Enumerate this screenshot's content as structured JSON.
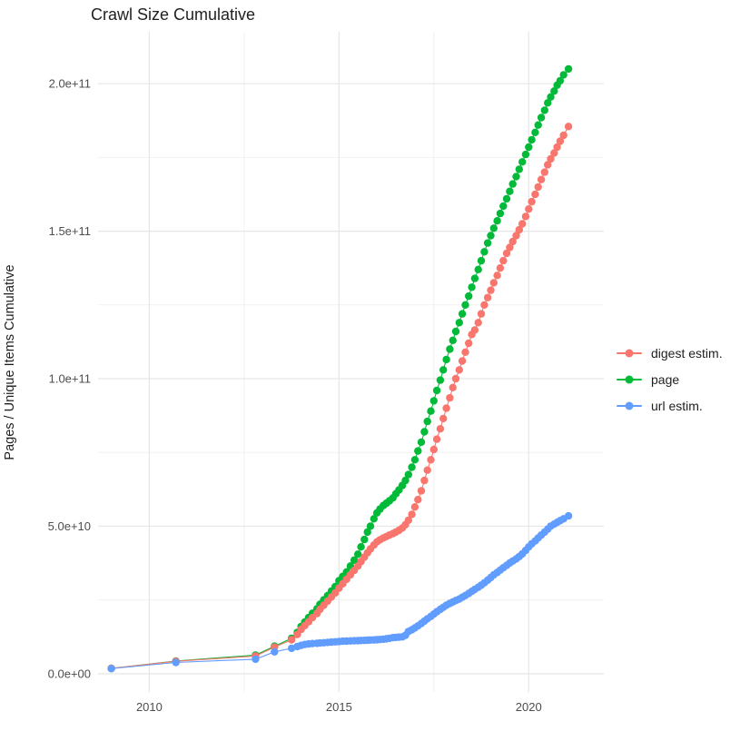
{
  "title": "Crawl Size Cumulative",
  "colors": {
    "digest": "#F8766D",
    "page": "#00BA38",
    "url": "#619CFF",
    "grid_major": "#E6E6E6",
    "grid_minor": "#F1F1F1",
    "tick_label": "#4D4D4D",
    "text": "#1F1F1F",
    "background": "#FFFFFF"
  },
  "legend": {
    "items": [
      {
        "label": "digest estim.",
        "color_key": "digest"
      },
      {
        "label": "page",
        "color_key": "page"
      },
      {
        "label": "url estim.",
        "color_key": "url"
      }
    ]
  },
  "chart_data": {
    "type": "line",
    "markers": true,
    "title": "Crawl Size Cumulative",
    "xlabel": "",
    "ylabel": "Pages / Unique Items Cumulative",
    "y_unit": 1000000000,
    "y_unit_note": "values below are in billions (1e9)",
    "xlim": [
      2008.65,
      2021.98
    ],
    "ylim": [
      -6.2,
      217.6
    ],
    "x_ticks": {
      "major": [
        2010,
        2015,
        2020
      ],
      "minor": [
        2012.5,
        2017.5
      ],
      "labels": [
        "2010",
        "2015",
        "2020"
      ]
    },
    "y_ticks": {
      "major": [
        0,
        50,
        100,
        150,
        200
      ],
      "minor": [
        25,
        75,
        125,
        175
      ],
      "labels": [
        "0.0e+00",
        "5.0e+10",
        "1.0e+11",
        "1.5e+11",
        "2.0e+11"
      ]
    },
    "grid": true,
    "legend_position": "right",
    "series": [
      {
        "name": "page",
        "color_key": "page",
        "points": [
          [
            2009.0,
            1.8
          ],
          [
            2010.7,
            4.3
          ],
          [
            2012.8,
            6.3
          ],
          [
            2013.3,
            9.3
          ],
          [
            2013.75,
            12
          ],
          [
            2013.9,
            14
          ],
          [
            2014.0,
            16
          ],
          [
            2014.1,
            17.5
          ],
          [
            2014.2,
            19
          ],
          [
            2014.3,
            20.5
          ],
          [
            2014.42,
            22
          ],
          [
            2014.5,
            23.5
          ],
          [
            2014.6,
            25
          ],
          [
            2014.7,
            26.5
          ],
          [
            2014.8,
            28
          ],
          [
            2014.9,
            29.5
          ],
          [
            2015.0,
            31.5
          ],
          [
            2015.1,
            33
          ],
          [
            2015.2,
            34.5
          ],
          [
            2015.3,
            36.5
          ],
          [
            2015.4,
            38.5
          ],
          [
            2015.5,
            40.5
          ],
          [
            2015.58,
            43
          ],
          [
            2015.67,
            45.5
          ],
          [
            2015.75,
            48
          ],
          [
            2015.83,
            50
          ],
          [
            2015.92,
            52.5
          ],
          [
            2016.0,
            54.5
          ],
          [
            2016.08,
            55.8
          ],
          [
            2016.17,
            57
          ],
          [
            2016.25,
            57.8
          ],
          [
            2016.33,
            58.6
          ],
          [
            2016.42,
            59.6
          ],
          [
            2016.5,
            61
          ],
          [
            2016.58,
            62.3
          ],
          [
            2016.67,
            63.8
          ],
          [
            2016.75,
            65.5
          ],
          [
            2016.83,
            67.5
          ],
          [
            2016.92,
            70
          ],
          [
            2017.0,
            72.5
          ],
          [
            2017.08,
            75.5
          ],
          [
            2017.17,
            78.5
          ],
          [
            2017.25,
            82
          ],
          [
            2017.33,
            85.5
          ],
          [
            2017.42,
            89
          ],
          [
            2017.5,
            92.5
          ],
          [
            2017.58,
            96
          ],
          [
            2017.67,
            99.5
          ],
          [
            2017.75,
            103
          ],
          [
            2017.83,
            106.5
          ],
          [
            2017.92,
            110
          ],
          [
            2018.0,
            113
          ],
          [
            2018.08,
            116
          ],
          [
            2018.17,
            119
          ],
          [
            2018.25,
            122
          ],
          [
            2018.33,
            125
          ],
          [
            2018.42,
            128
          ],
          [
            2018.5,
            131
          ],
          [
            2018.58,
            134
          ],
          [
            2018.67,
            137
          ],
          [
            2018.75,
            140
          ],
          [
            2018.83,
            143
          ],
          [
            2018.92,
            146
          ],
          [
            2019.0,
            148.5
          ],
          [
            2019.08,
            151
          ],
          [
            2019.17,
            153.5
          ],
          [
            2019.25,
            156
          ],
          [
            2019.33,
            158.5
          ],
          [
            2019.42,
            161
          ],
          [
            2019.5,
            163.5
          ],
          [
            2019.58,
            166
          ],
          [
            2019.67,
            168.5
          ],
          [
            2019.75,
            171
          ],
          [
            2019.83,
            173.5
          ],
          [
            2019.92,
            176
          ],
          [
            2020.0,
            178.5
          ],
          [
            2020.08,
            181
          ],
          [
            2020.17,
            183.5
          ],
          [
            2020.25,
            186
          ],
          [
            2020.33,
            188.5
          ],
          [
            2020.42,
            191
          ],
          [
            2020.5,
            193.5
          ],
          [
            2020.58,
            195.5
          ],
          [
            2020.67,
            197.5
          ],
          [
            2020.75,
            199.5
          ],
          [
            2020.83,
            201
          ],
          [
            2020.92,
            203
          ],
          [
            2021.05,
            205
          ]
        ]
      },
      {
        "name": "digest estim.",
        "color_key": "digest",
        "points": [
          [
            2009.0,
            1.8
          ],
          [
            2010.7,
            4.2
          ],
          [
            2012.8,
            6.0
          ],
          [
            2013.3,
            9.0
          ],
          [
            2013.75,
            11.5
          ],
          [
            2013.9,
            13.3
          ],
          [
            2014.0,
            15
          ],
          [
            2014.1,
            16.3
          ],
          [
            2014.2,
            17.6
          ],
          [
            2014.3,
            19
          ],
          [
            2014.42,
            20.4
          ],
          [
            2014.5,
            21.8
          ],
          [
            2014.6,
            23.2
          ],
          [
            2014.7,
            24.6
          ],
          [
            2014.8,
            26
          ],
          [
            2014.9,
            27.4
          ],
          [
            2015.0,
            29
          ],
          [
            2015.1,
            30.5
          ],
          [
            2015.2,
            32
          ],
          [
            2015.3,
            33.5
          ],
          [
            2015.4,
            35
          ],
          [
            2015.5,
            36.5
          ],
          [
            2015.58,
            38
          ],
          [
            2015.67,
            39.5
          ],
          [
            2015.75,
            41
          ],
          [
            2015.83,
            42.3
          ],
          [
            2015.92,
            43.6
          ],
          [
            2016.0,
            44.7
          ],
          [
            2016.08,
            45.4
          ],
          [
            2016.17,
            46
          ],
          [
            2016.25,
            46.5
          ],
          [
            2016.33,
            47
          ],
          [
            2016.42,
            47.5
          ],
          [
            2016.5,
            48
          ],
          [
            2016.58,
            48.6
          ],
          [
            2016.67,
            49.4
          ],
          [
            2016.75,
            50.5
          ],
          [
            2016.83,
            52
          ],
          [
            2016.92,
            54
          ],
          [
            2017.0,
            56.5
          ],
          [
            2017.08,
            59
          ],
          [
            2017.17,
            62
          ],
          [
            2017.25,
            65.5
          ],
          [
            2017.33,
            69
          ],
          [
            2017.42,
            72.5
          ],
          [
            2017.5,
            76
          ],
          [
            2017.58,
            79.5
          ],
          [
            2017.67,
            83
          ],
          [
            2017.75,
            86.5
          ],
          [
            2017.83,
            90
          ],
          [
            2017.92,
            93.5
          ],
          [
            2018.0,
            97
          ],
          [
            2018.08,
            100
          ],
          [
            2018.17,
            103
          ],
          [
            2018.25,
            106
          ],
          [
            2018.33,
            109
          ],
          [
            2018.42,
            112
          ],
          [
            2018.5,
            115
          ],
          [
            2018.58,
            116.5
          ],
          [
            2018.67,
            119
          ],
          [
            2018.75,
            122
          ],
          [
            2018.83,
            125
          ],
          [
            2018.92,
            127.5
          ],
          [
            2019.0,
            130
          ],
          [
            2019.08,
            132.5
          ],
          [
            2019.17,
            135
          ],
          [
            2019.25,
            137.5
          ],
          [
            2019.33,
            140
          ],
          [
            2019.42,
            142.5
          ],
          [
            2019.5,
            144.5
          ],
          [
            2019.58,
            146.5
          ],
          [
            2019.67,
            148.5
          ],
          [
            2019.75,
            150.5
          ],
          [
            2019.83,
            152.5
          ],
          [
            2019.92,
            155
          ],
          [
            2020.0,
            157.5
          ],
          [
            2020.08,
            160
          ],
          [
            2020.17,
            162.5
          ],
          [
            2020.25,
            165
          ],
          [
            2020.33,
            167.5
          ],
          [
            2020.42,
            170
          ],
          [
            2020.5,
            172.5
          ],
          [
            2020.58,
            174.5
          ],
          [
            2020.67,
            176.5
          ],
          [
            2020.75,
            178.5
          ],
          [
            2020.83,
            180.5
          ],
          [
            2020.92,
            182.5
          ],
          [
            2021.05,
            185.5
          ]
        ]
      },
      {
        "name": "url estim.",
        "color_key": "url",
        "points": [
          [
            2009.0,
            1.7
          ],
          [
            2010.7,
            3.8
          ],
          [
            2012.8,
            4.9
          ],
          [
            2013.3,
            7.4
          ],
          [
            2013.75,
            8.6
          ],
          [
            2013.9,
            9.2
          ],
          [
            2014.0,
            9.6
          ],
          [
            2014.1,
            9.9
          ],
          [
            2014.2,
            10.1
          ],
          [
            2014.3,
            10.2
          ],
          [
            2014.42,
            10.3
          ],
          [
            2014.5,
            10.4
          ],
          [
            2014.6,
            10.5
          ],
          [
            2014.7,
            10.6
          ],
          [
            2014.8,
            10.7
          ],
          [
            2014.9,
            10.8
          ],
          [
            2015.0,
            10.9
          ],
          [
            2015.1,
            11.0
          ],
          [
            2015.2,
            11.05
          ],
          [
            2015.3,
            11.1
          ],
          [
            2015.4,
            11.15
          ],
          [
            2015.5,
            11.2
          ],
          [
            2015.58,
            11.25
          ],
          [
            2015.67,
            11.3
          ],
          [
            2015.75,
            11.35
          ],
          [
            2015.83,
            11.4
          ],
          [
            2015.92,
            11.45
          ],
          [
            2016.0,
            11.5
          ],
          [
            2016.08,
            11.6
          ],
          [
            2016.17,
            11.7
          ],
          [
            2016.25,
            11.8
          ],
          [
            2016.33,
            12.0
          ],
          [
            2016.42,
            12.2
          ],
          [
            2016.5,
            12.3
          ],
          [
            2016.58,
            12.4
          ],
          [
            2016.67,
            12.5
          ],
          [
            2016.75,
            13.0
          ],
          [
            2016.83,
            14.3
          ],
          [
            2016.92,
            14.9
          ],
          [
            2017.0,
            15.5
          ],
          [
            2017.08,
            16.2
          ],
          [
            2017.17,
            17
          ],
          [
            2017.25,
            17.8
          ],
          [
            2017.33,
            18.6
          ],
          [
            2017.42,
            19.4
          ],
          [
            2017.5,
            20.2
          ],
          [
            2017.58,
            21
          ],
          [
            2017.67,
            21.8
          ],
          [
            2017.75,
            22.5
          ],
          [
            2017.83,
            23.2
          ],
          [
            2017.92,
            23.8
          ],
          [
            2018.0,
            24.3
          ],
          [
            2018.08,
            24.8
          ],
          [
            2018.17,
            25.3
          ],
          [
            2018.25,
            25.9
          ],
          [
            2018.33,
            26.5
          ],
          [
            2018.42,
            27.2
          ],
          [
            2018.5,
            27.9
          ],
          [
            2018.58,
            28.6
          ],
          [
            2018.67,
            29.3
          ],
          [
            2018.75,
            30
          ],
          [
            2018.83,
            30.8
          ],
          [
            2018.92,
            31.7
          ],
          [
            2019.0,
            32.6
          ],
          [
            2019.08,
            33.5
          ],
          [
            2019.17,
            34.3
          ],
          [
            2019.25,
            35.1
          ],
          [
            2019.33,
            35.9
          ],
          [
            2019.42,
            36.7
          ],
          [
            2019.5,
            37.5
          ],
          [
            2019.58,
            38.2
          ],
          [
            2019.67,
            38.9
          ],
          [
            2019.75,
            39.7
          ],
          [
            2019.83,
            40.6
          ],
          [
            2019.92,
            41.8
          ],
          [
            2020.0,
            43
          ],
          [
            2020.08,
            44
          ],
          [
            2020.17,
            45
          ],
          [
            2020.25,
            46
          ],
          [
            2020.33,
            47
          ],
          [
            2020.42,
            48
          ],
          [
            2020.5,
            49
          ],
          [
            2020.58,
            50
          ],
          [
            2020.67,
            50.7
          ],
          [
            2020.75,
            51.3
          ],
          [
            2020.83,
            51.9
          ],
          [
            2020.92,
            52.5
          ],
          [
            2021.05,
            53.5
          ]
        ]
      }
    ]
  }
}
